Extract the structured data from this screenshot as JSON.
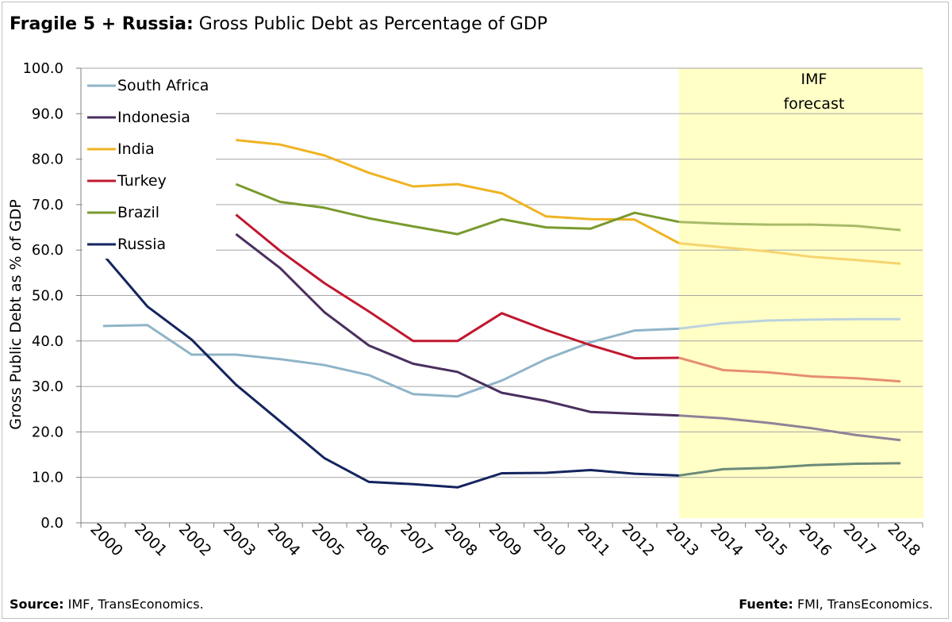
{
  "title": {
    "bold": "Fragile 5 + Russia:",
    "rest": " Gross Public Debt as Percentage of GDP"
  },
  "footer": {
    "source_label": "Source:",
    "source_text": " IMF, TransEconomics.",
    "fuente_label": "Fuente:",
    "fuente_text": " FMI, TransEconomics."
  },
  "chart_data": {
    "type": "line",
    "ylabel": "Gross Public Debt as % of GDP",
    "xlabel": "",
    "ylim": [
      0,
      100
    ],
    "yticks": [
      "0.0",
      "10.0",
      "20.0",
      "30.0",
      "40.0",
      "50.0",
      "60.0",
      "70.0",
      "80.0",
      "90.0",
      "100.0"
    ],
    "categories": [
      "2000",
      "2001",
      "2002",
      "2003",
      "2004",
      "2005",
      "2006",
      "2007",
      "2008",
      "2009",
      "2010",
      "2011",
      "2012",
      "2013",
      "2014",
      "2015",
      "2016",
      "2017",
      "2018"
    ],
    "grid": true,
    "legend_position": "top-left",
    "forecast": {
      "label_line1": "IMF",
      "label_line2": "forecast",
      "start": "2013",
      "color": "#ffffc6"
    },
    "series": [
      {
        "name": "South Africa",
        "color": "#8fb4c8",
        "forecast_color": "#bcd3de",
        "values": [
          43.3,
          43.5,
          37.0,
          37.0,
          36.0,
          34.7,
          32.5,
          28.3,
          27.8,
          31.3,
          36.0,
          39.7,
          42.3,
          42.7,
          43.9,
          44.5,
          44.7,
          44.8,
          44.8
        ]
      },
      {
        "name": "Indonesia",
        "color": "#4a2f5e",
        "forecast_color": "#8f8398",
        "values": [
          null,
          null,
          null,
          63.5,
          56.0,
          46.3,
          39.0,
          35.0,
          33.2,
          28.6,
          26.8,
          24.4,
          24.0,
          23.6,
          23.0,
          22.0,
          20.8,
          19.3,
          18.2
        ]
      },
      {
        "name": "India",
        "color": "#f0b323",
        "forecast_color": "#f6d46f",
        "values": [
          null,
          null,
          null,
          84.2,
          83.2,
          80.8,
          77.0,
          74.0,
          74.5,
          72.5,
          67.4,
          66.8,
          66.7,
          61.5,
          60.6,
          59.7,
          58.5,
          57.8,
          57.0
        ]
      },
      {
        "name": "Turkey",
        "color": "#c0182f",
        "forecast_color": "#e58e74",
        "values": [
          null,
          null,
          null,
          67.8,
          59.8,
          52.7,
          46.5,
          40.0,
          40.0,
          46.1,
          42.4,
          39.1,
          36.2,
          36.3,
          33.6,
          33.1,
          32.2,
          31.8,
          31.1
        ]
      },
      {
        "name": "Brazil",
        "color": "#7a9a2f",
        "forecast_color": "#a8bb68",
        "values": [
          null,
          null,
          null,
          74.5,
          70.6,
          69.3,
          67.0,
          65.2,
          63.5,
          66.8,
          65.0,
          64.7,
          68.2,
          66.2,
          65.8,
          65.6,
          65.6,
          65.3,
          64.4
        ]
      },
      {
        "name": "Russia",
        "color": "#13245e",
        "forecast_color": "#6c8a7a",
        "values": [
          59.0,
          47.6,
          40.3,
          30.4,
          22.3,
          14.2,
          9.0,
          8.5,
          7.8,
          10.9,
          11.0,
          11.6,
          10.8,
          10.4,
          11.8,
          12.1,
          12.7,
          13.0,
          13.1
        ]
      }
    ]
  }
}
